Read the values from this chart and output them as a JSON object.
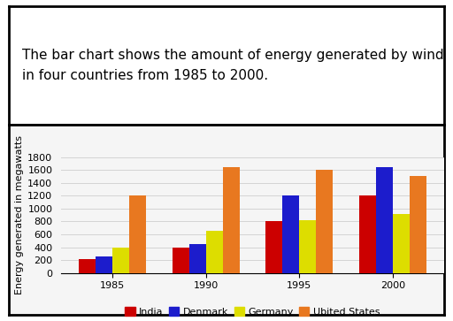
{
  "title": "The bar chart shows the amount of energy generated by wind\nin four countries from 1985 to 2000.",
  "ylabel": "Energy generated in megawatts",
  "years": [
    1985,
    1990,
    1995,
    2000
  ],
  "countries": [
    "India",
    "Denmark",
    "Germany",
    "Ubited States"
  ],
  "values": {
    "India": [
      210,
      400,
      810,
      1200
    ],
    "Denmark": [
      250,
      450,
      1200,
      1650
    ],
    "Germany": [
      400,
      650,
      820,
      910
    ],
    "Ubited States": [
      1200,
      1650,
      1610,
      1510
    ]
  },
  "colors": {
    "India": "#cc0000",
    "Denmark": "#1c1ccc",
    "Germany": "#dddd00",
    "Ubited States": "#e87820"
  },
  "ylim": [
    0,
    1800
  ],
  "yticks": [
    0,
    200,
    400,
    600,
    800,
    1000,
    1200,
    1400,
    1600,
    1800
  ],
  "bar_width": 0.18,
  "chart_bg": "#f5f5f5",
  "outer_bg": "#ffffff",
  "title_box_color": "#ffffff",
  "grid": true,
  "title_fontsize": 11,
  "ylabel_fontsize": 8,
  "tick_fontsize": 8,
  "legend_fontsize": 8
}
